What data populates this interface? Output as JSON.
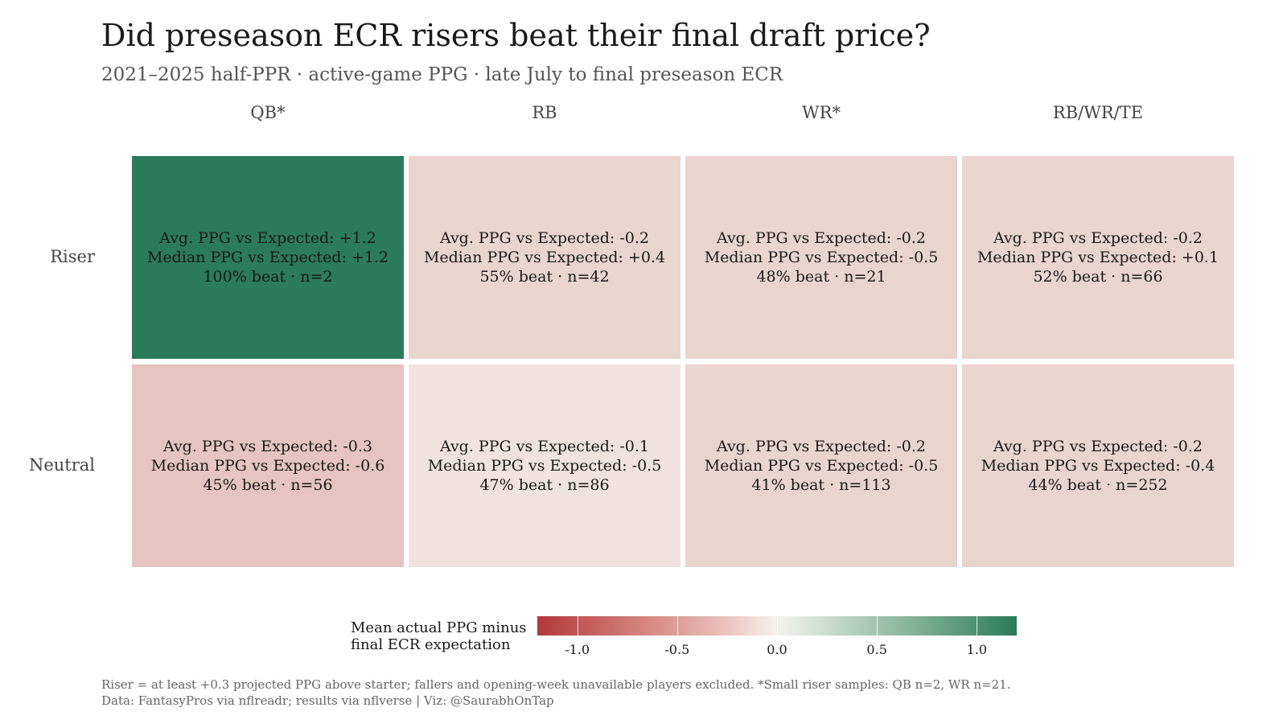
{
  "chart_data": {
    "type": "heatmap",
    "title": "Did preseason ECR risers beat their final draft price?",
    "subtitle": "2021–2025 half-PPR · active-game PPG · late July to final preseason ECR",
    "columns": [
      "QB*",
      "RB",
      "WR*",
      "RB/WR/TE"
    ],
    "rows": [
      "Riser",
      "Neutral"
    ],
    "cells": [
      {
        "row": "Riser",
        "column": "QB*",
        "value": 1.2,
        "avg_label": "Avg. PPG vs Expected: +1.2",
        "median_label": "Median PPG vs Expected: +1.2",
        "beat_label": "100% beat · n=2"
      },
      {
        "row": "Riser",
        "column": "RB",
        "value": -0.2,
        "avg_label": "Avg. PPG vs Expected: -0.2",
        "median_label": "Median PPG vs Expected: +0.4",
        "beat_label": "55% beat · n=42"
      },
      {
        "row": "Riser",
        "column": "WR*",
        "value": -0.2,
        "avg_label": "Avg. PPG vs Expected: -0.2",
        "median_label": "Median PPG vs Expected: -0.5",
        "beat_label": "48% beat · n=21"
      },
      {
        "row": "Riser",
        "column": "RB/WR/TE",
        "value": -0.2,
        "avg_label": "Avg. PPG vs Expected: -0.2",
        "median_label": "Median PPG vs Expected: +0.1",
        "beat_label": "52% beat · n=66"
      },
      {
        "row": "Neutral",
        "column": "QB*",
        "value": -0.3,
        "avg_label": "Avg. PPG vs Expected: -0.3",
        "median_label": "Median PPG vs Expected: -0.6",
        "beat_label": "45% beat · n=56"
      },
      {
        "row": "Neutral",
        "column": "RB",
        "value": -0.1,
        "avg_label": "Avg. PPG vs Expected: -0.1",
        "median_label": "Median PPG vs Expected: -0.5",
        "beat_label": "47% beat · n=86"
      },
      {
        "row": "Neutral",
        "column": "WR*",
        "value": -0.2,
        "avg_label": "Avg. PPG vs Expected: -0.2",
        "median_label": "Median PPG vs Expected: -0.5",
        "beat_label": "41% beat · n=113"
      },
      {
        "row": "Neutral",
        "column": "RB/WR/TE",
        "value": -0.2,
        "avg_label": "Avg. PPG vs Expected: -0.2",
        "median_label": "Median PPG vs Expected: -0.4",
        "beat_label": "44% beat · n=252"
      }
    ],
    "colors": {
      "riser_qb": "#2a7a5b",
      "neutral_qb": "#ebc5bf",
      "riser_rb": "#f2dad5",
      "riser_wr": "#f2dbd6",
      "riser_flex": "#f2dbd6",
      "neutral_rb": "#f2ddd8",
      "neutral_wr": "#f1d6d0",
      "neutral_flex": "#f2dbd6"
    },
    "legend": {
      "title_line1": "Mean actual PPG minus",
      "title_line2": "final ECR expectation",
      "ticks": [
        "-1.0",
        "-0.5",
        "0.0",
        "0.5",
        "1.0"
      ],
      "tick_values": [
        -1.0,
        -0.5,
        0.0,
        0.5,
        1.0
      ],
      "range": [
        -1.2,
        1.2
      ],
      "placement": "bottom"
    },
    "footnote_line1": "Riser = at least +0.3 projected PPG above starter; fallers and opening-week unavailable players excluded. *Small riser samples: QB n=2, WR n=21.",
    "footnote_line2": "Data: FantasyPros via nflreadr; results via nflverse | Viz: @SaurabhOnTap"
  }
}
